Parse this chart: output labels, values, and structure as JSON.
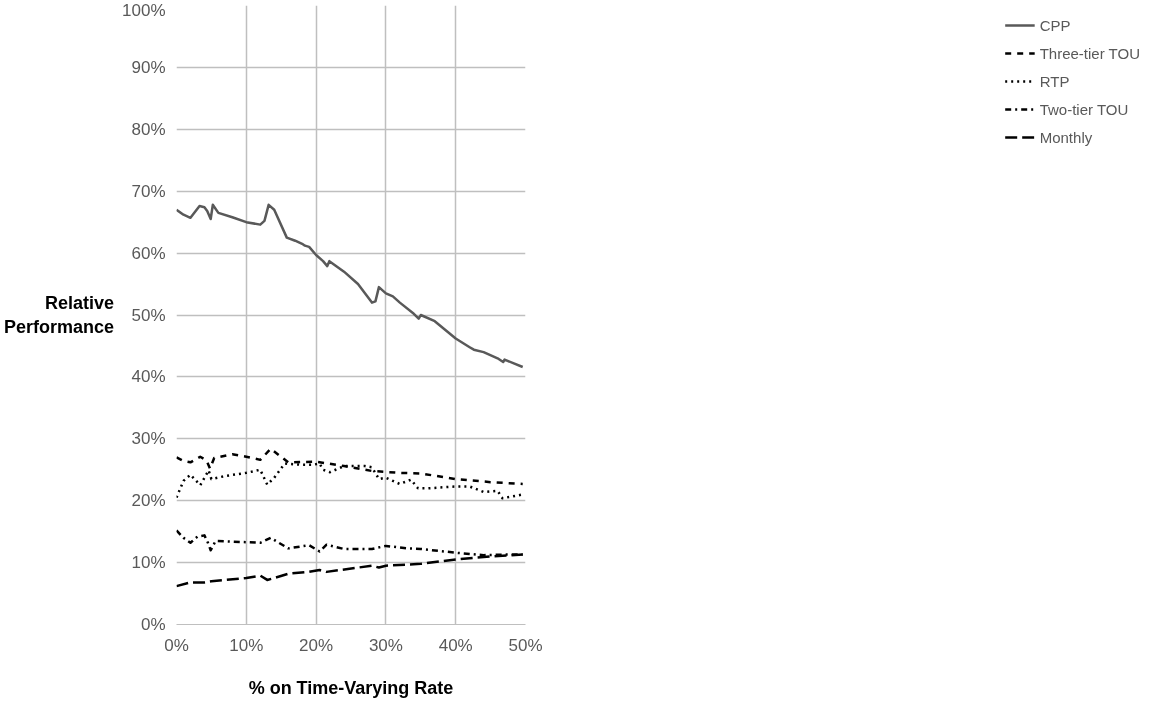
{
  "chart_data": {
    "type": "line",
    "xlabel": "% on Time-Varying Rate",
    "ylabel": "Relative\nPerformance",
    "xlim": [
      0,
      50
    ],
    "ylim": [
      0,
      100
    ],
    "xticks": [
      {
        "value": 0,
        "label": "0%"
      },
      {
        "value": 10,
        "label": "10%"
      },
      {
        "value": 20,
        "label": "20%"
      },
      {
        "value": 30,
        "label": "30%"
      },
      {
        "value": 40,
        "label": "40%"
      },
      {
        "value": 50,
        "label": "50%"
      }
    ],
    "yticks": [
      {
        "value": 0,
        "label": "0%"
      },
      {
        "value": 10,
        "label": "10%"
      },
      {
        "value": 20,
        "label": "20%"
      },
      {
        "value": 30,
        "label": "30%"
      },
      {
        "value": 40,
        "label": "40%"
      },
      {
        "value": 50,
        "label": "50%"
      },
      {
        "value": 60,
        "label": "60%"
      },
      {
        "value": 70,
        "label": "70%"
      },
      {
        "value": 80,
        "label": "80%"
      },
      {
        "value": 90,
        "label": "90%"
      },
      {
        "value": 100,
        "label": "100%"
      }
    ],
    "grid": true,
    "legend": "right",
    "marker": "none",
    "series": [
      {
        "name": "CPP",
        "color": "#595959",
        "line_style": "solid",
        "x": [
          0,
          1,
          2,
          3.3,
          4,
          4.4,
          4.9,
          5.2,
          6,
          8,
          10,
          12,
          12.6,
          13.2,
          14,
          15.8,
          17,
          18,
          18.4,
          19,
          20,
          21,
          21.6,
          21.9,
          24,
          26,
          28,
          28.5,
          29,
          30,
          31,
          32,
          34,
          34.7,
          35,
          37,
          40,
          42,
          42.6,
          44,
          46,
          46.8,
          47,
          49.6
        ],
        "values": [
          67,
          66.2,
          65.7,
          67.6,
          67.4,
          66.8,
          65.5,
          67.8,
          66.5,
          65.8,
          65,
          64.6,
          65.2,
          67.8,
          67,
          62.5,
          62,
          61.5,
          61.2,
          61,
          59.7,
          58.7,
          57.9,
          58.7,
          57,
          55,
          52,
          52.2,
          54.5,
          53.5,
          53,
          52,
          50.2,
          49.4,
          50,
          49,
          46.2,
          44.8,
          44.4,
          44,
          43,
          42.4,
          42.8,
          41.6
        ]
      },
      {
        "name": "Three-tier TOU",
        "color": "#000000",
        "line_style": "dashed",
        "x": [
          0,
          1,
          2,
          3.4,
          4.3,
          4.8,
          5.4,
          8,
          10,
          12,
          13.5,
          16,
          20,
          24,
          28,
          32,
          35,
          40,
          45,
          49.6
        ],
        "values": [
          27,
          26.4,
          26.2,
          27.1,
          26.5,
          25.2,
          26.9,
          27.5,
          27.1,
          26.6,
          28.4,
          26.2,
          26.3,
          25.6,
          24.8,
          24.5,
          24.4,
          23.5,
          23,
          22.7
        ]
      },
      {
        "name": "RTP",
        "color": "#000000",
        "line_style": "dotted",
        "x": [
          0,
          1,
          2,
          3.4,
          4.6,
          5,
          7,
          10,
          12,
          13,
          14,
          15.5,
          18,
          19.5,
          20.5,
          21,
          22,
          24,
          27,
          28,
          29,
          30,
          31,
          32,
          33.6,
          34.6,
          36,
          40,
          42,
          44,
          46,
          46.7,
          49.6
        ],
        "values": [
          20.5,
          23.2,
          24.2,
          22.5,
          24.9,
          23.5,
          24,
          24.5,
          25,
          22.6,
          23.7,
          26,
          25.8,
          25.8,
          26,
          25,
          24.6,
          25.6,
          25.6,
          25.4,
          23.5,
          23.7,
          23.2,
          22.7,
          23.4,
          22,
          22,
          22.3,
          22.3,
          21.4,
          21.6,
          20.4,
          21
        ]
      },
      {
        "name": "Two-tier TOU",
        "color": "#000000",
        "line_style": "dashdot",
        "x": [
          0,
          1,
          2,
          3,
          4,
          4.5,
          4.9,
          5.6,
          10,
          12,
          13.5,
          16,
          19,
          20.5,
          21.5,
          24,
          28,
          30,
          33,
          35,
          40,
          44,
          47,
          49.6
        ],
        "values": [
          15.2,
          14,
          13.2,
          14.2,
          14.4,
          13.2,
          12,
          13.5,
          13.3,
          13.2,
          14,
          12.3,
          12.8,
          11.8,
          12.9,
          12.2,
          12.2,
          12.7,
          12.3,
          12.2,
          11.6,
          11.2,
          11.3,
          11.3
        ]
      },
      {
        "name": "Monthly",
        "color": "#000000",
        "line_style": "longdash",
        "x": [
          0,
          2,
          4,
          5,
          10,
          12,
          13,
          14,
          16,
          19,
          20.5,
          21.5,
          28,
          29,
          30,
          35,
          40,
          45,
          49.6
        ],
        "values": [
          6.2,
          6.8,
          6.8,
          7,
          7.5,
          7.9,
          7.2,
          7.5,
          8.2,
          8.5,
          8.8,
          8.5,
          9.5,
          9.2,
          9.5,
          9.8,
          10.5,
          11,
          11.3
        ]
      }
    ]
  }
}
